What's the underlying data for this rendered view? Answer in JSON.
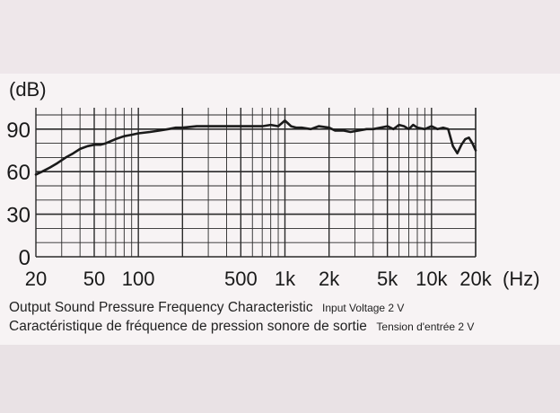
{
  "chart_data": {
    "type": "line",
    "title": "",
    "ylabel": "(dB)",
    "xunit": "(Hz)",
    "xscale": "log",
    "xlim": [
      20,
      20000
    ],
    "ylim": [
      0,
      100
    ],
    "grid": true,
    "y_ticks": [
      "0",
      "30",
      "60",
      "90"
    ],
    "x_ticks": [
      {
        "label": "20",
        "value": 20
      },
      {
        "label": "50",
        "value": 50
      },
      {
        "label": "100",
        "value": 100
      },
      {
        "label": "500",
        "value": 500
      },
      {
        "label": "1k",
        "value": 1000
      },
      {
        "label": "2k",
        "value": 2000
      },
      {
        "label": "5k",
        "value": 5000
      },
      {
        "label": "10k",
        "value": 10000
      },
      {
        "label": "20k",
        "value": 20000
      }
    ],
    "series": [
      {
        "x": [
          20,
          22,
          25,
          28,
          32,
          36,
          40,
          45,
          50,
          55,
          60,
          70,
          80,
          90,
          100,
          120,
          140,
          160,
          180,
          200,
          250,
          300,
          350,
          400,
          450,
          500,
          600,
          700,
          800,
          900,
          1000,
          1050,
          1100,
          1200,
          1300,
          1500,
          1700,
          2000,
          2200,
          2500,
          2800,
          3200,
          3600,
          4000,
          4500,
          5000,
          5500,
          6000,
          6500,
          7000,
          7500,
          8000,
          9000,
          10000,
          11000,
          12000,
          13000,
          14000,
          15000,
          16000,
          17000,
          18000,
          19000,
          20000
        ],
        "y": [
          58,
          60,
          63,
          66,
          70,
          73,
          76,
          78,
          79,
          79,
          80,
          83,
          85,
          86,
          87,
          88,
          89,
          90,
          91,
          91,
          92,
          92,
          92,
          92,
          92,
          92,
          92,
          92,
          93,
          92,
          96,
          94,
          92,
          91,
          91,
          90,
          92,
          91,
          89,
          89,
          88,
          89,
          90,
          90,
          91,
          92,
          90,
          93,
          92,
          90,
          93,
          91,
          90,
          92,
          90,
          91,
          90,
          78,
          73,
          79,
          83,
          84,
          80,
          75
        ]
      }
    ]
  },
  "captions": {
    "line1_main": "Output Sound Pressure Frequency Characteristic",
    "line1_sub": "Input Voltage 2 V",
    "line2_main": "Caractéristique de fréquence de pression sonore de sortie",
    "line2_sub": "Tension d'entrée 2 V"
  },
  "colors": {
    "ink": "#1a1a1a",
    "grid": "#2a2a2a",
    "paper": "#f7f3f4"
  }
}
